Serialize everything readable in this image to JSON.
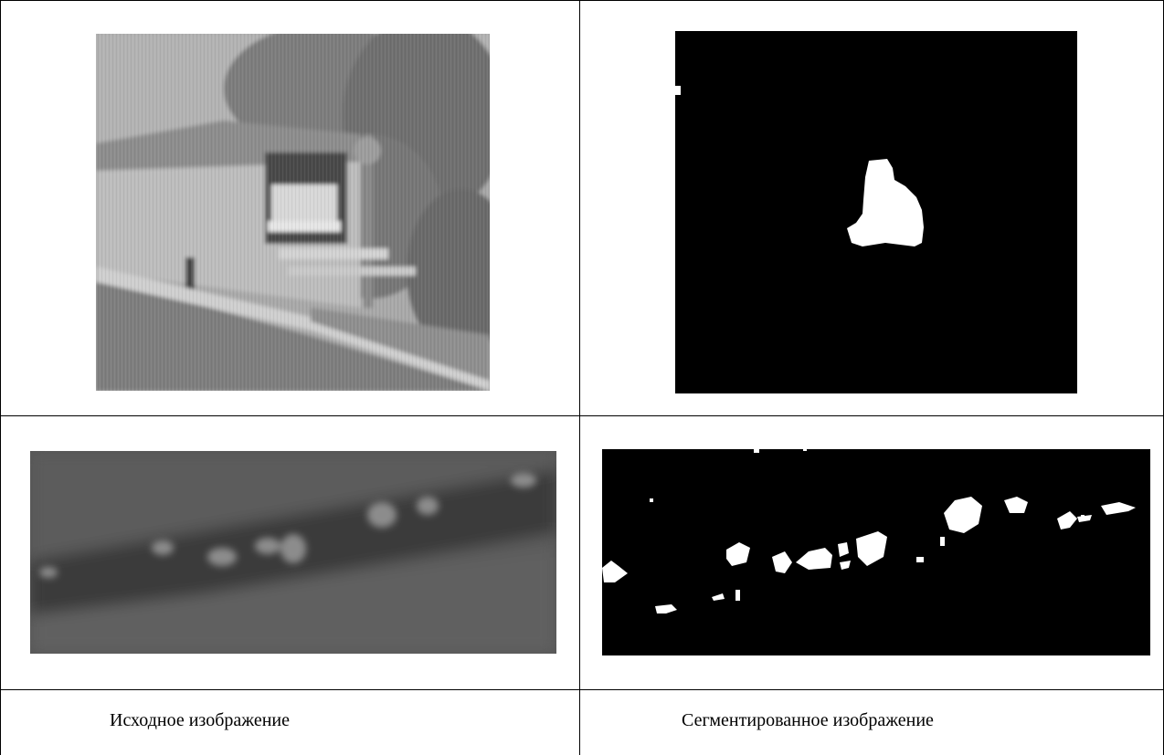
{
  "table": {
    "captions": {
      "original": "Исходное изображение",
      "segmented": "Сегментированное изображение"
    }
  },
  "colors": {
    "border": "#000000",
    "mask_background": "#000000",
    "mask_foreground": "#ffffff",
    "photo_gray": "#9a9a9a"
  }
}
